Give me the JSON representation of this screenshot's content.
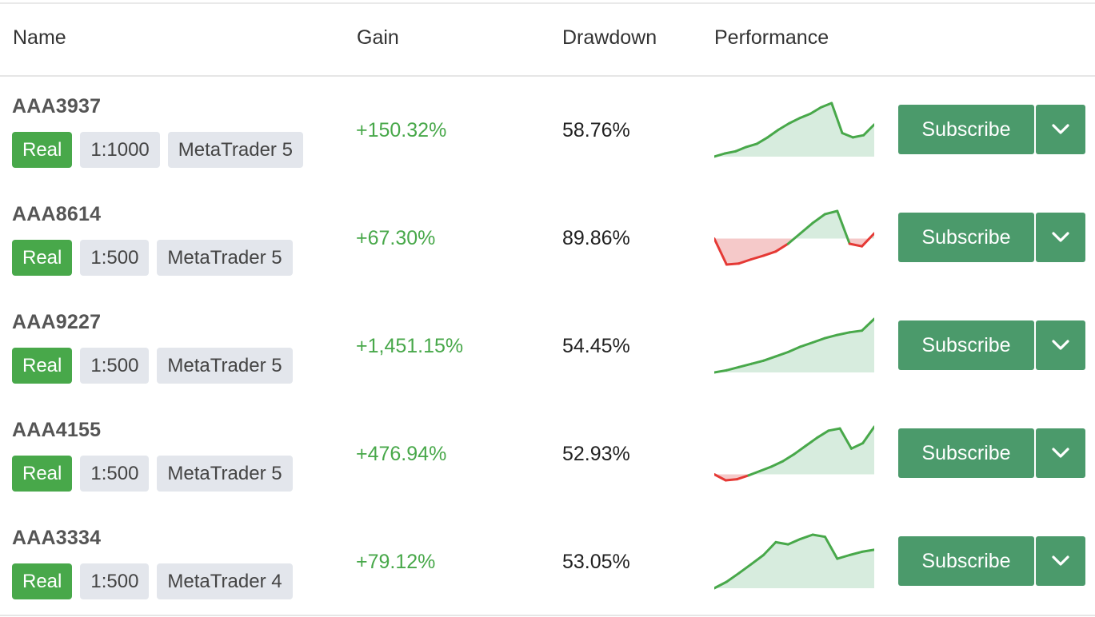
{
  "header": {
    "name": "Name",
    "gain": "Gain",
    "drawdown": "Drawdown",
    "performance": "Performance"
  },
  "colors": {
    "positive": "#48a84a",
    "negative": "#e53935",
    "positive_fill": "#d7ecde",
    "negative_fill": "#f5c9c9",
    "button": "#4b9a6b",
    "badge_gray": "#e3e6ec"
  },
  "rows": [
    {
      "name": "AAA3937",
      "type": "Real",
      "leverage": "1:1000",
      "platform": "MetaTrader 5",
      "gain": "+150.32%",
      "drawdown": "58.76%",
      "subscribe_label": "Subscribe",
      "dropdown_icon": "chevron-down-icon",
      "performance": [
        0.0,
        0.06,
        0.1,
        0.18,
        0.24,
        0.36,
        0.5,
        0.62,
        0.72,
        0.8,
        0.92,
        1.0,
        0.44,
        0.36,
        0.4,
        0.6
      ],
      "baseline_index": 0
    },
    {
      "name": "AAA8614",
      "type": "Real",
      "leverage": "1:500",
      "platform": "MetaTrader 5",
      "gain": "+67.30%",
      "drawdown": "89.86%",
      "subscribe_label": "Subscribe",
      "dropdown_icon": "chevron-down-icon",
      "performance": [
        0.15,
        -0.35,
        -0.33,
        -0.25,
        -0.18,
        -0.1,
        0.05,
        0.25,
        0.45,
        0.62,
        0.68,
        0.05,
        0.0,
        0.25
      ],
      "baseline_index": 0
    },
    {
      "name": "AAA9227",
      "type": "Real",
      "leverage": "1:500",
      "platform": "MetaTrader 5",
      "gain": "+1,451.15%",
      "drawdown": "54.45%",
      "subscribe_label": "Subscribe",
      "dropdown_icon": "chevron-down-icon",
      "performance": [
        0.0,
        0.04,
        0.1,
        0.16,
        0.22,
        0.3,
        0.38,
        0.48,
        0.56,
        0.64,
        0.7,
        0.75,
        0.78,
        1.0
      ],
      "baseline_index": 0
    },
    {
      "name": "AAA4155",
      "type": "Real",
      "leverage": "1:500",
      "platform": "MetaTrader 5",
      "gain": "+476.94%",
      "drawdown": "52.93%",
      "subscribe_label": "Subscribe",
      "dropdown_icon": "chevron-down-icon",
      "performance": [
        0.08,
        -0.03,
        -0.01,
        0.06,
        0.14,
        0.22,
        0.32,
        0.45,
        0.6,
        0.75,
        0.88,
        0.92,
        0.55,
        0.65,
        0.95
      ],
      "baseline_index": 0
    },
    {
      "name": "AAA3334",
      "type": "Real",
      "leverage": "1:500",
      "platform": "MetaTrader 4",
      "gain": "+79.12%",
      "drawdown": "53.05%",
      "subscribe_label": "Subscribe",
      "dropdown_icon": "chevron-down-icon",
      "performance": [
        0.0,
        0.12,
        0.28,
        0.45,
        0.62,
        0.86,
        0.82,
        0.92,
        1.0,
        0.96,
        0.55,
        0.62,
        0.68,
        0.72
      ],
      "baseline_index": 0
    }
  ]
}
